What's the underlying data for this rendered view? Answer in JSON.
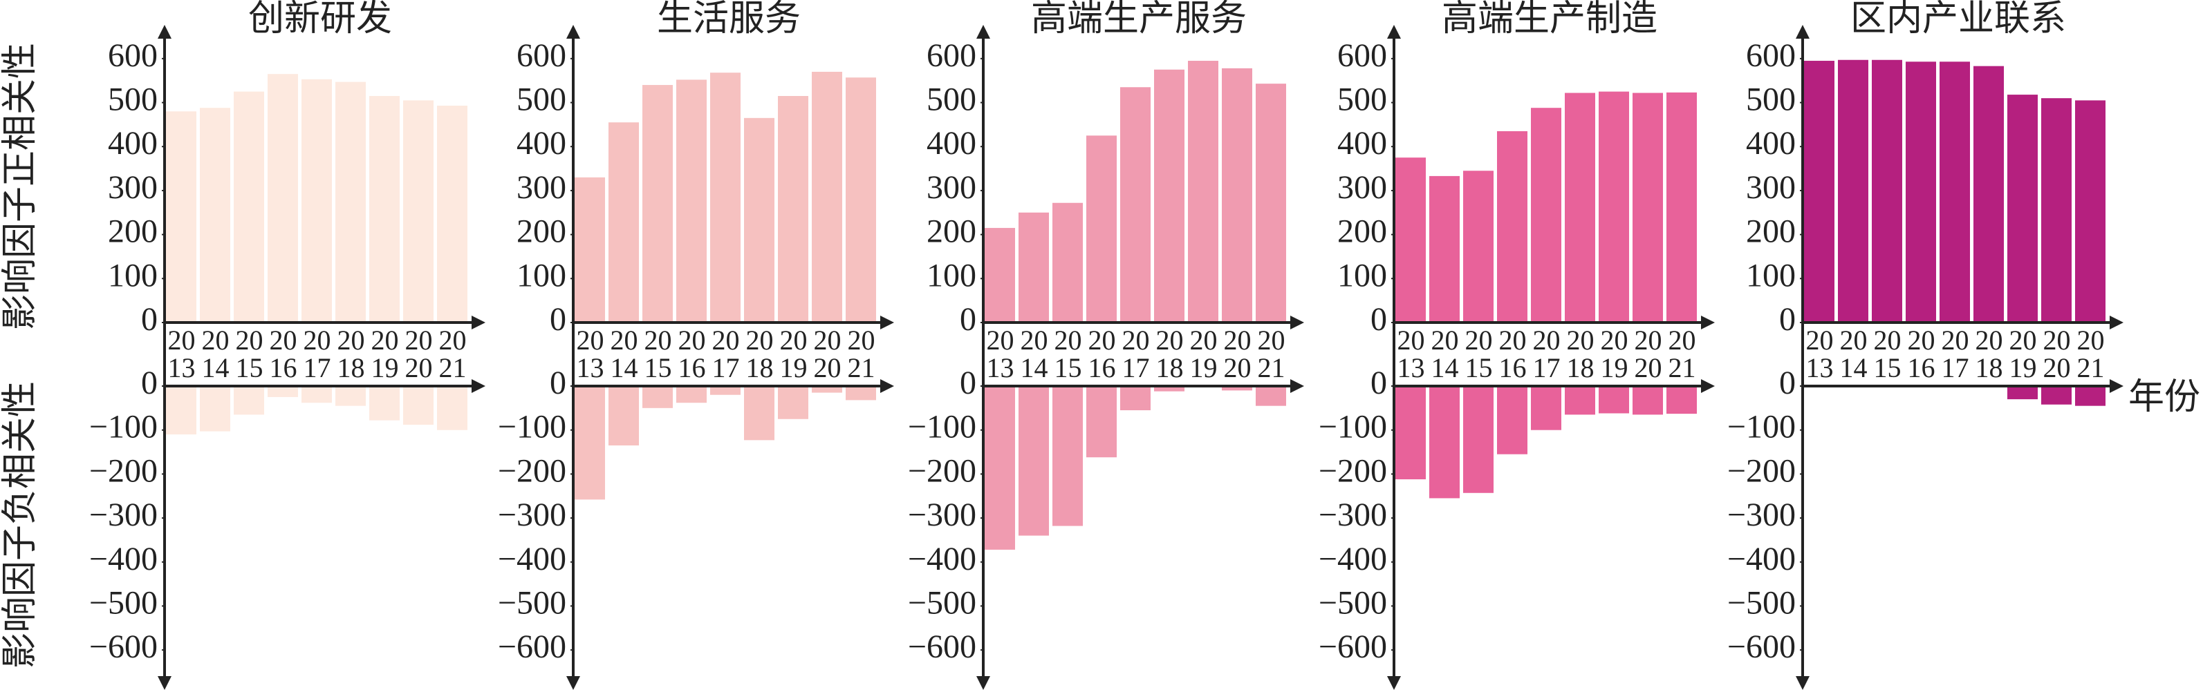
{
  "axis_labels": {
    "y_positive": "影响因子正相关性",
    "y_negative": "影响因子负相关性",
    "x": "年份"
  },
  "chart_data": [
    {
      "type": "bar",
      "title": "创新研发",
      "categories": [
        "2013",
        "2014",
        "2015",
        "2016",
        "2017",
        "2018",
        "2019",
        "2020",
        "2021"
      ],
      "series": [
        {
          "color": "#fde9df",
          "values": [
            480,
            488,
            525,
            565,
            553,
            547,
            515,
            505,
            493
          ]
        },
        {
          "color": "#fde9df",
          "axis": "y2",
          "values": [
            -110,
            -103,
            -65,
            -25,
            -38,
            -45,
            -78,
            -88,
            -100
          ]
        }
      ],
      "ylim": [
        0,
        650
      ],
      "yticks": [
        0,
        100,
        200,
        300,
        400,
        500,
        600
      ],
      "y2lim": [
        -650,
        0
      ],
      "y2ticks": [
        0,
        {
          "value": -100,
          "label": "−100"
        },
        {
          "value": -200,
          "label": "−200"
        },
        {
          "value": -300,
          "label": "−300"
        },
        {
          "value": -400,
          "label": "−400"
        },
        {
          "value": -500,
          "label": "−500"
        },
        {
          "value": -600,
          "label": "−600"
        }
      ]
    },
    {
      "type": "bar",
      "title": "生活服务",
      "categories": [
        "2013",
        "2014",
        "2015",
        "2016",
        "2017",
        "2018",
        "2019",
        "2020",
        "2021"
      ],
      "series": [
        {
          "color": "#f6c1c0",
          "values": [
            330,
            455,
            540,
            552,
            568,
            465,
            515,
            570,
            557
          ]
        },
        {
          "color": "#f6c1c0",
          "axis": "y2",
          "values": [
            -258,
            -135,
            -50,
            -38,
            -20,
            -123,
            -75,
            -15,
            -32
          ]
        }
      ],
      "ylim": [
        0,
        650
      ],
      "yticks": [
        0,
        100,
        200,
        300,
        400,
        500,
        600
      ],
      "y2lim": [
        -650,
        0
      ],
      "y2ticks": [
        0,
        {
          "value": -100,
          "label": "−100"
        },
        {
          "value": -200,
          "label": "−200"
        },
        {
          "value": -300,
          "label": "−300"
        },
        {
          "value": -400,
          "label": "−400"
        },
        {
          "value": -500,
          "label": "−500"
        },
        {
          "value": -600,
          "label": "−600"
        }
      ]
    },
    {
      "type": "bar",
      "title": "高端生产服务",
      "categories": [
        "2013",
        "2014",
        "2015",
        "2016",
        "2017",
        "2018",
        "2019",
        "2020",
        "2021"
      ],
      "series": [
        {
          "color": "#f09bb0",
          "values": [
            215,
            250,
            272,
            425,
            535,
            575,
            595,
            578,
            543
          ]
        },
        {
          "color": "#f09bb0",
          "axis": "y2",
          "values": [
            -372,
            -340,
            -318,
            -162,
            -55,
            -12,
            0,
            -10,
            -45
          ]
        }
      ],
      "ylim": [
        0,
        650
      ],
      "yticks": [
        0,
        100,
        200,
        300,
        400,
        500,
        600
      ],
      "y2lim": [
        -650,
        0
      ],
      "y2ticks": [
        0,
        {
          "value": -100,
          "label": "−100"
        },
        {
          "value": -200,
          "label": "−200"
        },
        {
          "value": -300,
          "label": "−300"
        },
        {
          "value": -400,
          "label": "−400"
        },
        {
          "value": -500,
          "label": "−500"
        },
        {
          "value": -600,
          "label": "−600"
        }
      ]
    },
    {
      "type": "bar",
      "title": "高端生产制造",
      "categories": [
        "2013",
        "2014",
        "2015",
        "2016",
        "2017",
        "2018",
        "2019",
        "2020",
        "2021"
      ],
      "series": [
        {
          "color": "#e8629a",
          "values": [
            375,
            333,
            345,
            435,
            488,
            522,
            525,
            522,
            523
          ]
        },
        {
          "color": "#e8629a",
          "axis": "y2",
          "values": [
            -212,
            -255,
            -243,
            -155,
            -100,
            -65,
            -62,
            -65,
            -63
          ]
        }
      ],
      "ylim": [
        0,
        650
      ],
      "yticks": [
        0,
        100,
        200,
        300,
        400,
        500,
        600
      ],
      "y2lim": [
        -650,
        0
      ],
      "y2ticks": [
        0,
        {
          "value": -100,
          "label": "−100"
        },
        {
          "value": -200,
          "label": "−200"
        },
        {
          "value": -300,
          "label": "−300"
        },
        {
          "value": -400,
          "label": "−400"
        },
        {
          "value": -500,
          "label": "−500"
        },
        {
          "value": -600,
          "label": "−600"
        }
      ]
    },
    {
      "type": "bar",
      "title": "区内产业联系",
      "categories": [
        "2013",
        "2014",
        "2015",
        "2016",
        "2017",
        "2018",
        "2019",
        "2020",
        "2021"
      ],
      "series": [
        {
          "color": "#b5207f",
          "values": [
            595,
            597,
            597,
            593,
            593,
            583,
            518,
            510,
            505
          ]
        },
        {
          "color": "#b5207f",
          "axis": "y2",
          "values": [
            0,
            0,
            0,
            0,
            0,
            0,
            -30,
            -42,
            -45
          ]
        }
      ],
      "ylim": [
        0,
        650
      ],
      "yticks": [
        0,
        100,
        200,
        300,
        400,
        500,
        600
      ],
      "y2lim": [
        -650,
        0
      ],
      "y2ticks": [
        0,
        {
          "value": -100,
          "label": "−100"
        },
        {
          "value": -200,
          "label": "−200"
        },
        {
          "value": -300,
          "label": "−300"
        },
        {
          "value": -400,
          "label": "−400"
        },
        {
          "value": -500,
          "label": "−500"
        },
        {
          "value": -600,
          "label": "−600"
        }
      ]
    }
  ]
}
